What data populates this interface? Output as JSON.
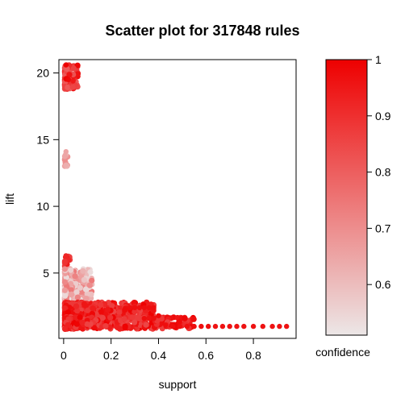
{
  "chart_data": {
    "type": "scatter",
    "title": "Scatter plot for 317848 rules",
    "xlabel": "support",
    "ylabel": "lift",
    "xlim": [
      -0.02,
      0.98
    ],
    "ylim": [
      0.1,
      21.0
    ],
    "xticks": [
      0,
      0.2,
      0.4,
      0.6,
      0.8
    ],
    "yticks": [
      5,
      10,
      15,
      20
    ],
    "legend": {
      "label": "confidence",
      "range": [
        0.51,
        1.0
      ],
      "ticks": [
        0.6,
        0.7,
        0.8,
        0.9,
        1
      ],
      "colors": [
        "#ece7e7",
        "#ee0000"
      ],
      "placement": "right"
    },
    "point_clusters": [
      {
        "x": [
          0.005,
          0.06
        ],
        "y": [
          18.8,
          20.6
        ],
        "confidence": [
          0.8,
          1.0
        ],
        "count": 140
      },
      {
        "x": [
          0.005,
          0.02
        ],
        "y": [
          13.0,
          14.2
        ],
        "confidence": [
          0.62,
          0.7
        ],
        "count": 12
      },
      {
        "x": [
          0.005,
          0.03
        ],
        "y": [
          5.5,
          6.4
        ],
        "confidence": [
          0.85,
          0.95
        ],
        "count": 15
      },
      {
        "x": [
          0.005,
          0.12
        ],
        "y": [
          3.0,
          5.3
        ],
        "confidence": [
          0.52,
          0.75
        ],
        "count": 260
      },
      {
        "x": [
          0.005,
          0.38
        ],
        "y": [
          1.8,
          2.8
        ],
        "confidence": [
          0.85,
          1.0
        ],
        "count": 420
      },
      {
        "x": [
          0.005,
          0.55
        ],
        "y": [
          0.8,
          1.7
        ],
        "confidence": [
          0.85,
          1.0
        ],
        "count": 480
      }
    ],
    "points": [
      {
        "x": 0.01,
        "y": 20.6,
        "confidence": 1.0
      },
      {
        "x": 0.02,
        "y": 19.5,
        "confidence": 0.98
      },
      {
        "x": 0.04,
        "y": 19.4,
        "confidence": 0.95
      },
      {
        "x": 0.01,
        "y": 14.1,
        "confidence": 0.65
      },
      {
        "x": 0.01,
        "y": 13.1,
        "confidence": 0.63
      },
      {
        "x": 0.01,
        "y": 6.3,
        "confidence": 0.92
      },
      {
        "x": 0.28,
        "y": 2.4,
        "confidence": 0.97
      },
      {
        "x": 0.3,
        "y": 2.4,
        "confidence": 0.97
      },
      {
        "x": 0.32,
        "y": 2.4,
        "confidence": 0.97
      },
      {
        "x": 0.34,
        "y": 2.4,
        "confidence": 0.97
      },
      {
        "x": 0.36,
        "y": 2.4,
        "confidence": 0.97
      },
      {
        "x": 0.38,
        "y": 2.4,
        "confidence": 0.97
      },
      {
        "x": 0.4,
        "y": 1.8,
        "confidence": 0.98
      },
      {
        "x": 0.34,
        "y": 1.6,
        "confidence": 0.97
      },
      {
        "x": 0.38,
        "y": 1.6,
        "confidence": 0.97
      },
      {
        "x": 0.43,
        "y": 1.1,
        "confidence": 0.97
      },
      {
        "x": 0.46,
        "y": 1.0,
        "confidence": 0.97
      },
      {
        "x": 0.49,
        "y": 1.0,
        "confidence": 0.97
      },
      {
        "x": 0.52,
        "y": 1.0,
        "confidence": 0.97
      },
      {
        "x": 0.55,
        "y": 1.0,
        "confidence": 0.97
      },
      {
        "x": 0.58,
        "y": 1.0,
        "confidence": 0.97
      },
      {
        "x": 0.61,
        "y": 1.0,
        "confidence": 0.97
      },
      {
        "x": 0.64,
        "y": 1.0,
        "confidence": 0.96
      },
      {
        "x": 0.67,
        "y": 1.0,
        "confidence": 0.96
      },
      {
        "x": 0.7,
        "y": 1.0,
        "confidence": 0.96
      },
      {
        "x": 0.73,
        "y": 1.0,
        "confidence": 0.96
      },
      {
        "x": 0.76,
        "y": 1.0,
        "confidence": 0.96
      },
      {
        "x": 0.8,
        "y": 1.0,
        "confidence": 0.96
      },
      {
        "x": 0.84,
        "y": 1.0,
        "confidence": 0.96
      },
      {
        "x": 0.88,
        "y": 1.0,
        "confidence": 0.96
      },
      {
        "x": 0.91,
        "y": 1.0,
        "confidence": 0.96
      },
      {
        "x": 0.94,
        "y": 1.0,
        "confidence": 0.96
      }
    ]
  }
}
